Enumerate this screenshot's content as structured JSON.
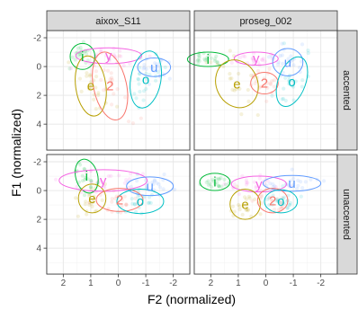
{
  "chart_data": {
    "type": "scatter",
    "facets": {
      "columns": [
        "aixox_S11",
        "proseg_002"
      ],
      "rows": [
        "accented",
        "unaccented"
      ]
    },
    "xlabel": "F2 (normalized)",
    "ylabel": "F1 (normalized)",
    "x_reversed": true,
    "y_reversed": true,
    "xlim": [
      2.6,
      -2.6
    ],
    "ylim": [
      -2.5,
      5.8
    ],
    "x_ticks": [
      2,
      1,
      0,
      -1,
      -2
    ],
    "y_ticks": [
      -2,
      0,
      2,
      4
    ],
    "grid": true,
    "vowels": [
      {
        "label": "i",
        "color": "#00BA38"
      },
      {
        "label": "y",
        "color": "#F564E3"
      },
      {
        "label": "u",
        "color": "#619CFF"
      },
      {
        "label": "e",
        "color": "#B79F00"
      },
      {
        "label": "2",
        "color": "#F8766D"
      },
      {
        "label": "o",
        "color": "#00BFC4"
      }
    ],
    "panels": [
      {
        "column": "aixox_S11",
        "row": "accented",
        "vowels": [
          {
            "label": "i",
            "f2": 1.3,
            "f1": -0.7,
            "rx": 0.45,
            "ry": 0.9,
            "angle": 0
          },
          {
            "label": "y",
            "f2": 0.35,
            "f1": -0.75,
            "rx": 1.2,
            "ry": 0.55,
            "angle": 0
          },
          {
            "label": "u",
            "f2": -1.3,
            "f1": 0.05,
            "rx": 0.6,
            "ry": 0.65,
            "angle": 0
          },
          {
            "label": "e",
            "f2": 1.0,
            "f1": 1.35,
            "rx": 0.55,
            "ry": 2.1,
            "angle": -8
          },
          {
            "label": "2",
            "f2": 0.3,
            "f1": 1.35,
            "rx": 0.6,
            "ry": 2.4,
            "angle": -12
          },
          {
            "label": "o",
            "f2": -1.0,
            "f1": 0.9,
            "rx": 0.55,
            "ry": 2.0,
            "angle": 10
          }
        ]
      },
      {
        "column": "proseg_002",
        "row": "accented",
        "vowels": [
          {
            "label": "i",
            "f2": 2.1,
            "f1": -0.5,
            "rx": 0.75,
            "ry": 0.5,
            "angle": 0
          },
          {
            "label": "y",
            "f2": 0.35,
            "f1": -0.55,
            "rx": 0.8,
            "ry": 0.45,
            "angle": 0
          },
          {
            "label": "u",
            "f2": -0.8,
            "f1": -0.3,
            "rx": 0.55,
            "ry": 0.95,
            "angle": 0
          },
          {
            "label": "e",
            "f2": 1.05,
            "f1": 1.2,
            "rx": 0.75,
            "ry": 1.7,
            "angle": -25
          },
          {
            "label": "2",
            "f2": 0.05,
            "f1": 1.15,
            "rx": 0.5,
            "ry": 0.75,
            "angle": 0
          },
          {
            "label": "o",
            "f2": -0.95,
            "f1": 1.05,
            "rx": 0.5,
            "ry": 1.8,
            "angle": 20
          }
        ]
      },
      {
        "column": "aixox_S11",
        "row": "unaccented",
        "vowels": [
          {
            "label": "i",
            "f2": 1.15,
            "f1": -1.0,
            "rx": 0.4,
            "ry": 1.2,
            "angle": -15
          },
          {
            "label": "y",
            "f2": 0.55,
            "f1": -0.7,
            "rx": 1.6,
            "ry": 0.75,
            "angle": 0
          },
          {
            "label": "u",
            "f2": -1.15,
            "f1": -0.3,
            "rx": 0.85,
            "ry": 0.65,
            "angle": 0
          },
          {
            "label": "e",
            "f2": 0.95,
            "f1": 0.55,
            "rx": 0.5,
            "ry": 1.0,
            "angle": 0
          },
          {
            "label": "2",
            "f2": -0.05,
            "f1": 0.65,
            "rx": 0.85,
            "ry": 0.8,
            "angle": 0
          },
          {
            "label": "o",
            "f2": -0.8,
            "f1": 0.75,
            "rx": 0.85,
            "ry": 0.85,
            "angle": 0
          }
        ]
      },
      {
        "column": "proseg_002",
        "row": "unaccented",
        "vowels": [
          {
            "label": "i",
            "f2": 1.85,
            "f1": -0.6,
            "rx": 0.55,
            "ry": 0.6,
            "angle": 0
          },
          {
            "label": "y",
            "f2": 0.25,
            "f1": -0.45,
            "rx": 1.0,
            "ry": 0.55,
            "angle": 0
          },
          {
            "label": "u",
            "f2": -0.95,
            "f1": -0.5,
            "rx": 1.05,
            "ry": 0.55,
            "angle": 0
          },
          {
            "label": "e",
            "f2": 0.75,
            "f1": 0.95,
            "rx": 0.55,
            "ry": 1.05,
            "angle": 0
          },
          {
            "label": "2",
            "f2": -0.25,
            "f1": 0.7,
            "rx": 0.55,
            "ry": 0.85,
            "angle": 0
          },
          {
            "label": "o",
            "f2": -0.55,
            "f1": 0.75,
            "rx": 0.6,
            "ry": 0.8,
            "angle": 0
          }
        ]
      }
    ]
  }
}
